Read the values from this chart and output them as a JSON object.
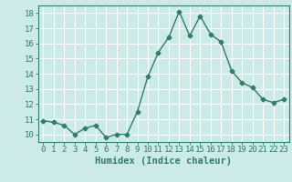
{
  "x": [
    0,
    1,
    2,
    3,
    4,
    5,
    6,
    7,
    8,
    9,
    10,
    11,
    12,
    13,
    14,
    15,
    16,
    17,
    18,
    19,
    20,
    21,
    22,
    23
  ],
  "y": [
    10.9,
    10.8,
    10.6,
    10.0,
    10.4,
    10.6,
    9.8,
    10.0,
    10.0,
    11.5,
    13.8,
    15.4,
    16.4,
    18.1,
    16.5,
    17.8,
    16.6,
    16.1,
    14.2,
    13.4,
    13.1,
    12.3,
    12.1,
    12.3
  ],
  "line_color": "#2e7d6e",
  "marker": "D",
  "markersize": 2.5,
  "linewidth": 1.0,
  "bg_color": "#cceae7",
  "grid_color": "#ffffff",
  "xlabel": "Humidex (Indice chaleur)",
  "xlim": [
    -0.5,
    23.5
  ],
  "ylim": [
    9.5,
    18.5
  ],
  "yticks": [
    10,
    11,
    12,
    13,
    14,
    15,
    16,
    17,
    18
  ],
  "xticks": [
    0,
    1,
    2,
    3,
    4,
    5,
    6,
    7,
    8,
    9,
    10,
    11,
    12,
    13,
    14,
    15,
    16,
    17,
    18,
    19,
    20,
    21,
    22,
    23
  ],
  "xlabel_fontsize": 7.5,
  "tick_fontsize": 6.5,
  "tick_color": "#2e7d6e",
  "axis_color": "#2e7d6e"
}
